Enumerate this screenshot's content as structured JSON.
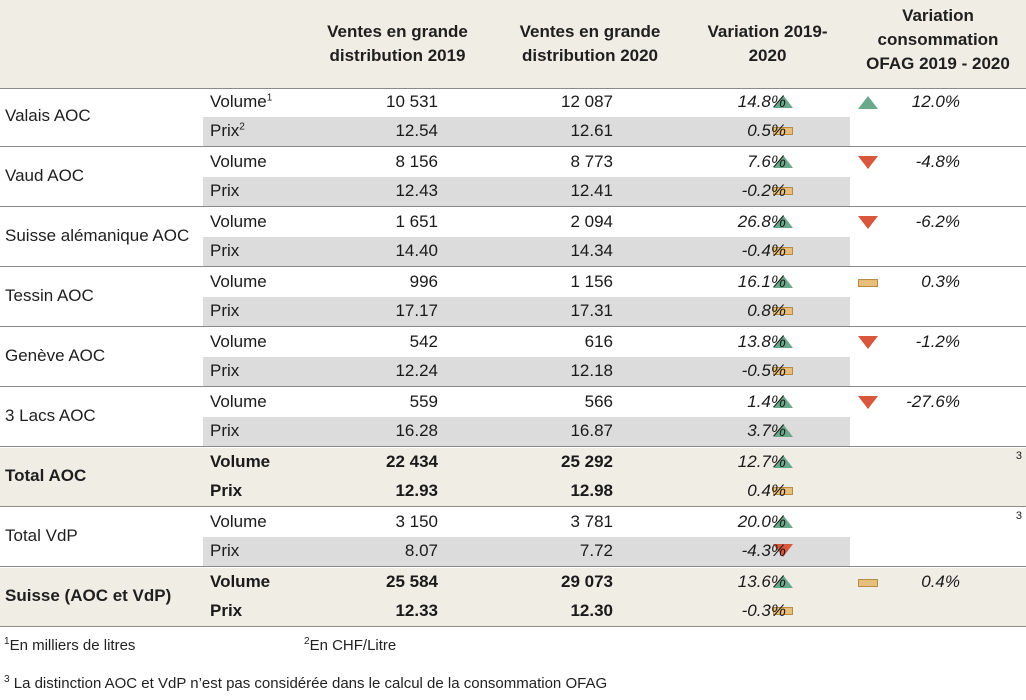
{
  "headers": {
    "col2019": [
      "Ventes en grande",
      "distribution 2019"
    ],
    "col2020": [
      "Ventes en grande",
      "distribution 2020"
    ],
    "variation": [
      "Variation 2019-",
      "2020"
    ],
    "ofag": [
      "Variation",
      "consommation",
      "OFAG 2019 - 2020"
    ]
  },
  "colors": {
    "up": "#6aa88c",
    "down": "#d9573b",
    "flat": "#e8bf7a",
    "header_bg": "#f0ede5",
    "total_bg": "#f0ede5",
    "gray_row": "#dcdcdc"
  },
  "groups": [
    {
      "name": "Valais AOC",
      "bold": false,
      "volume": {
        "label": "Volume",
        "sup": "1",
        "v2019": "10 531",
        "v2020": "12 087",
        "trend": "up",
        "var": "14.8%"
      },
      "prix": {
        "label": "Prix",
        "sup": "2",
        "v2019": "12.54",
        "v2020": "12.61",
        "trend": "flat",
        "var": "0.5%"
      },
      "ofag": {
        "trend": "up",
        "value": "12.0%",
        "note": ""
      }
    },
    {
      "name": "Vaud AOC",
      "bold": false,
      "volume": {
        "label": "Volume",
        "sup": "",
        "v2019": "8 156",
        "v2020": "8 773",
        "trend": "up",
        "var": "7.6%"
      },
      "prix": {
        "label": "Prix",
        "sup": "",
        "v2019": "12.43",
        "v2020": "12.41",
        "trend": "flat",
        "var": "-0.2%"
      },
      "ofag": {
        "trend": "down",
        "value": "-4.8%",
        "note": ""
      }
    },
    {
      "name": "Suisse alémanique AOC",
      "bold": false,
      "volume": {
        "label": "Volume",
        "sup": "",
        "v2019": "1 651",
        "v2020": "2 094",
        "trend": "up",
        "var": "26.8%"
      },
      "prix": {
        "label": "Prix",
        "sup": "",
        "v2019": "14.40",
        "v2020": "14.34",
        "trend": "flat",
        "var": "-0.4%"
      },
      "ofag": {
        "trend": "down",
        "value": "-6.2%",
        "note": ""
      }
    },
    {
      "name": "Tessin AOC",
      "bold": false,
      "volume": {
        "label": "Volume",
        "sup": "",
        "v2019": "996",
        "v2020": "1 156",
        "trend": "up",
        "var": "16.1%"
      },
      "prix": {
        "label": "Prix",
        "sup": "",
        "v2019": "17.17",
        "v2020": "17.31",
        "trend": "flat",
        "var": "0.8%"
      },
      "ofag": {
        "trend": "flat",
        "value": "0.3%",
        "note": ""
      }
    },
    {
      "name": "Genève AOC",
      "bold": false,
      "volume": {
        "label": "Volume",
        "sup": "",
        "v2019": "542",
        "v2020": "616",
        "trend": "up",
        "var": "13.8%"
      },
      "prix": {
        "label": "Prix",
        "sup": "",
        "v2019": "12.24",
        "v2020": "12.18",
        "trend": "flat",
        "var": "-0.5%"
      },
      "ofag": {
        "trend": "down",
        "value": "-1.2%",
        "note": ""
      }
    },
    {
      "name": "3 Lacs AOC",
      "bold": false,
      "volume": {
        "label": "Volume",
        "sup": "",
        "v2019": "559",
        "v2020": "566",
        "trend": "up",
        "var": "1.4%"
      },
      "prix": {
        "label": "Prix",
        "sup": "",
        "v2019": "16.28",
        "v2020": "16.87",
        "trend": "up",
        "var": "3.7%"
      },
      "ofag": {
        "trend": "down",
        "value": "-27.6%",
        "note": ""
      }
    },
    {
      "name": "Total AOC",
      "bold": true,
      "volume": {
        "label": "Volume",
        "sup": "",
        "v2019": "22 434",
        "v2020": "25 292",
        "trend": "up",
        "var": "12.7%"
      },
      "prix": {
        "label": "Prix",
        "sup": "",
        "v2019": "12.93",
        "v2020": "12.98",
        "trend": "flat",
        "var": "0.4%"
      },
      "ofag": {
        "trend": "",
        "value": "",
        "note": "3"
      }
    },
    {
      "name": "Total VdP",
      "bold": false,
      "volume": {
        "label": "Volume",
        "sup": "",
        "v2019": "3 150",
        "v2020": "3 781",
        "trend": "up",
        "var": "20.0%"
      },
      "prix": {
        "label": "Prix",
        "sup": "",
        "v2019": "8.07",
        "v2020": "7.72",
        "trend": "down",
        "var": "-4.3%"
      },
      "ofag": {
        "trend": "",
        "value": "",
        "note": "3"
      }
    },
    {
      "name": "Suisse (AOC et VdP)",
      "bold": true,
      "volume": {
        "label": "Volume",
        "sup": "",
        "v2019": "25 584",
        "v2020": "29 073",
        "trend": "up",
        "var": "13.6%"
      },
      "prix": {
        "label": "Prix",
        "sup": "",
        "v2019": "12.33",
        "v2020": "12.30",
        "trend": "flat",
        "var": "-0.3%"
      },
      "ofag": {
        "trend": "flat",
        "value": "0.4%",
        "note": ""
      }
    }
  ],
  "footnotes": {
    "f1_sup": "1",
    "f1": "En milliers de litres",
    "f2_sup": "2",
    "f2": "En CHF/Litre",
    "f3_sup": "3",
    "f3": "La distinction AOC et VdP n’est pas considérée dans le calcul de la consommation OFAG"
  }
}
